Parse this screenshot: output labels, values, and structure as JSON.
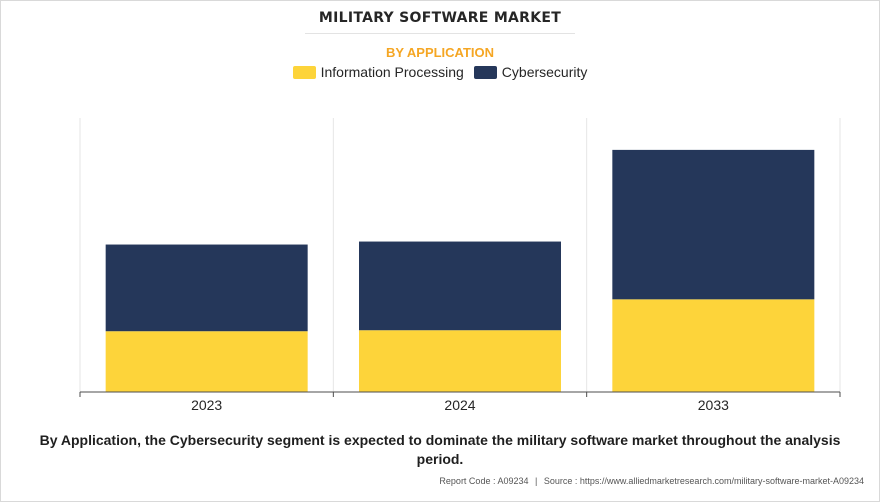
{
  "title": "MILITARY SOFTWARE MARKET",
  "subtitle": "BY APPLICATION",
  "caption": "By Application, the Cybersecurity segment is expected to dominate the military software market throughout the analysis period.",
  "footer": {
    "report_code": "Report Code : A09234",
    "separator": "|",
    "source": "Source : https://www.alliedmarketresearch.com/military-software-market-A09234"
  },
  "colors": {
    "information_processing": "#fdd43a",
    "cybersecurity": "#25375a",
    "axis": "#4d4d4d",
    "divider": "#e6e6e6"
  },
  "chart_data": {
    "type": "bar",
    "stacked": true,
    "categories": [
      "2023",
      "2024",
      "2033"
    ],
    "series": [
      {
        "name": "Information Processing",
        "values": [
          61,
          62,
          93
        ]
      },
      {
        "name": "Cybersecurity",
        "values": [
          87,
          89,
          150
        ]
      }
    ],
    "xlabel": "",
    "ylabel": "",
    "ylim": [
      0,
      275
    ],
    "y_axis_visible": false,
    "grid": false,
    "legend": "top-center"
  }
}
